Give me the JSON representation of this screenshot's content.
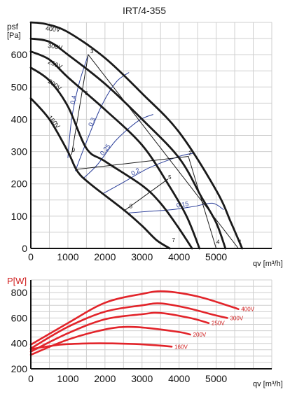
{
  "chart_data": [
    {
      "type": "line",
      "title": "IRT/4-355",
      "ylabel_main": "psf",
      "ylabel_unit": "[Pa]",
      "xlabel": "qv [m³/h]",
      "xlim": [
        0,
        6500
      ],
      "ylim": [
        0,
        700
      ],
      "xticks": [
        "0",
        "1000",
        "2000",
        "3000",
        "4000",
        "5000"
      ],
      "yticks": [
        "0",
        "100",
        "200",
        "300",
        "400",
        "500",
        "600"
      ],
      "series": [
        {
          "name": "400V",
          "x": [
            0,
            400,
            1000,
            2000,
            3000,
            4000,
            5000,
            5400,
            5700
          ],
          "y": [
            700,
            695,
            670,
            590,
            480,
            360,
            180,
            80,
            0
          ]
        },
        {
          "name": "300V",
          "x": [
            0,
            500,
            1000,
            2000,
            3000,
            4000,
            4600,
            5000,
            5250
          ],
          "y": [
            650,
            640,
            600,
            510,
            400,
            280,
            160,
            80,
            0
          ]
        },
        {
          "name": "250V",
          "x": [
            0,
            500,
            1000,
            2000,
            3000,
            3700,
            4200,
            4550
          ],
          "y": [
            610,
            585,
            530,
            430,
            320,
            200,
            100,
            0
          ]
        },
        {
          "name": "200V",
          "x": [
            0,
            500,
            1000,
            1500,
            2000,
            3000,
            3500,
            3950,
            4350
          ],
          "y": [
            560,
            520,
            440,
            310,
            270,
            195,
            140,
            70,
            0
          ]
        },
        {
          "name": "160V",
          "x": [
            0,
            500,
            1000,
            1250,
            1600,
            2500,
            3000,
            3400,
            3750
          ],
          "y": [
            465,
            400,
            300,
            240,
            200,
            120,
            70,
            25,
            0
          ]
        }
      ],
      "efficiency": [
        {
          "name": "0,4",
          "x": [
            1000,
            1100,
            1300,
            1550
          ],
          "y": [
            280,
            400,
            510,
            600
          ]
        },
        {
          "name": "0,3",
          "x": [
            1200,
            1500,
            1900,
            2300,
            2650
          ],
          "y": [
            240,
            330,
            440,
            515,
            545
          ]
        },
        {
          "name": "0,25",
          "x": [
            1400,
            1800,
            2300,
            2900,
            3300
          ],
          "y": [
            215,
            260,
            335,
            395,
            415
          ]
        },
        {
          "name": "0,2",
          "x": [
            1950,
            2500,
            3200,
            4000,
            4400
          ],
          "y": [
            170,
            205,
            250,
            285,
            295
          ]
        },
        {
          "name": "0,15",
          "x": [
            2650,
            3200,
            3800,
            4400,
            4900,
            5200
          ],
          "y": [
            110,
            115,
            120,
            130,
            140,
            120
          ]
        }
      ],
      "operating_points": [
        {
          "label": "1",
          "x": 5550,
          "y": 10
        },
        {
          "label": "2",
          "x": 4200,
          "y": 285
        },
        {
          "label": "3",
          "x": 1550,
          "y": 600
        },
        {
          "label": "4",
          "x": 4950,
          "y": 10
        },
        {
          "label": "5",
          "x": 3650,
          "y": 210
        },
        {
          "label": "6",
          "x": 1400,
          "y": 470
        },
        {
          "label": "7",
          "x": 3750,
          "y": 15
        },
        {
          "label": "8",
          "x": 2600,
          "y": 120
        },
        {
          "label": "9",
          "x": 1050,
          "y": 295
        }
      ],
      "system_lines": [
        {
          "x": [
            1100,
            1550,
            5600
          ],
          "y": [
            290,
            600,
            0
          ]
        },
        {
          "x": [
            1250,
            4250,
            5000
          ],
          "y": [
            245,
            285,
            0
          ]
        },
        {
          "x": [
            2500,
            3700
          ],
          "y": [
            115,
            215
          ]
        }
      ],
      "legend": "inline"
    },
    {
      "type": "line",
      "ylabel": "P[W]",
      "xlabel": "qv [m³/h]",
      "xlim": [
        0,
        6500
      ],
      "ylim": [
        200,
        900
      ],
      "xticks": [
        "0",
        "1000",
        "2000",
        "3000",
        "4000",
        "5000"
      ],
      "yticks": [
        "200",
        "400",
        "600",
        "800"
      ],
      "series": [
        {
          "name": "400V",
          "x": [
            0,
            1000,
            2000,
            3000,
            3600,
            4500,
            5400,
            5600
          ],
          "y": [
            390,
            560,
            720,
            790,
            810,
            770,
            690,
            670
          ]
        },
        {
          "name": "300V",
          "x": [
            0,
            1000,
            2000,
            3000,
            3500,
            4200,
            5000,
            5300
          ],
          "y": [
            360,
            530,
            650,
            700,
            715,
            680,
            620,
            600
          ]
        },
        {
          "name": "250V",
          "x": [
            0,
            1000,
            2000,
            3000,
            3500,
            4300,
            4800
          ],
          "y": [
            335,
            480,
            590,
            630,
            640,
            600,
            560
          ]
        },
        {
          "name": "200V",
          "x": [
            0,
            1000,
            2000,
            2600,
            3200,
            4000,
            4300
          ],
          "y": [
            310,
            430,
            510,
            530,
            520,
            490,
            470
          ]
        },
        {
          "name": "160V",
          "x": [
            0,
            800,
            1600,
            2200,
            2800,
            3400,
            3800
          ],
          "y": [
            355,
            390,
            400,
            400,
            395,
            385,
            375
          ]
        }
      ]
    }
  ]
}
